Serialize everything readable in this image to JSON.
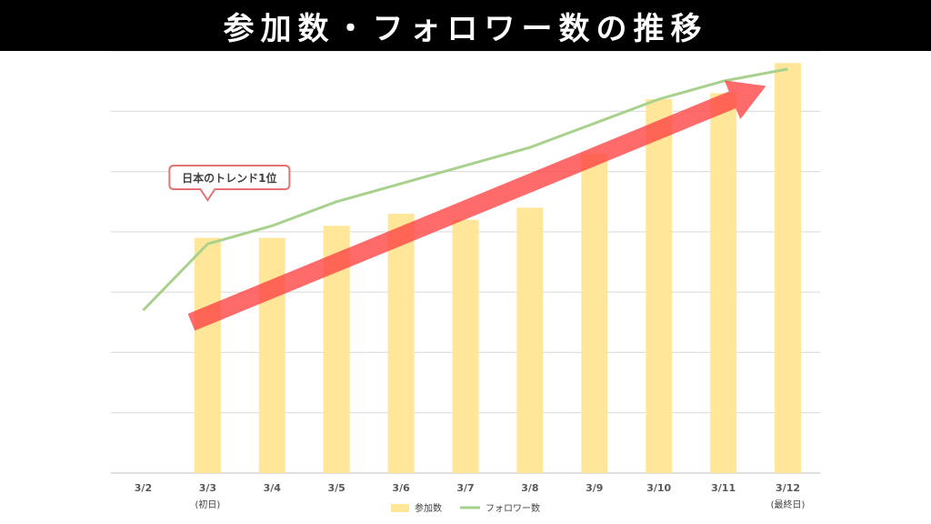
{
  "title": "参加数・フォロワー数の推移",
  "chart_data": {
    "type": "bar",
    "categories": [
      "3/2",
      "3/3",
      "3/4",
      "3/5",
      "3/6",
      "3/7",
      "3/8",
      "3/9",
      "3/10",
      "3/11",
      "3/12"
    ],
    "category_sublabels": [
      "",
      "(初日)",
      "",
      "",
      "",
      "",
      "",
      "",
      "",
      "",
      "(最終日)"
    ],
    "series": [
      {
        "name": "参加数",
        "type": "bar",
        "values": [
          0,
          39,
          39,
          41,
          43,
          42,
          44,
          53,
          62,
          63,
          68
        ]
      },
      {
        "name": "フォロワー数",
        "type": "line",
        "values": [
          27,
          38,
          41,
          45,
          48,
          51,
          54,
          58,
          62,
          65,
          67
        ]
      }
    ],
    "ylim": [
      0,
      70
    ],
    "grid": true,
    "legend_position": "bottom",
    "annotation": "日本のトレンド1位",
    "annotation_category": "3/3",
    "trend_arrow": {
      "from_category": "3/3",
      "to_category": "3/12",
      "from_value": 25,
      "to_value": 66
    },
    "colors": {
      "bar": "#FFE699",
      "line": "#A9D18E",
      "arrow": "#FF4040",
      "grid": "#D9D9D9",
      "callout_border": "#E57373"
    }
  }
}
